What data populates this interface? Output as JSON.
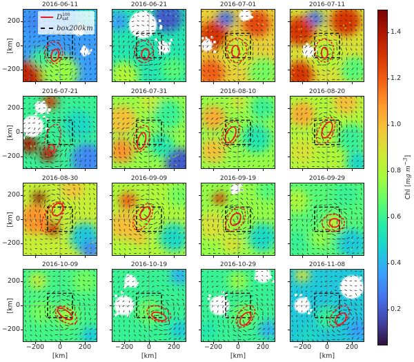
{
  "chart_data": {
    "type": "heatmap",
    "description_kind": "small multiples of chlorophyll maps with velocity arrows",
    "xlabel": "[km]",
    "ylabel": "[km]",
    "xlim": [
      -300,
      300
    ],
    "ylim": [
      -300,
      300
    ],
    "xticks": [
      -200,
      0,
      200
    ],
    "yticks": [
      200,
      0,
      -200
    ],
    "xtick_labels": [
      "−200",
      "0",
      "200"
    ],
    "ytick_labels": [
      "200",
      "0",
      "−200"
    ],
    "legend": {
      "placement": "top-left of first panel",
      "entries": [
        {
          "name": "D_sat^100",
          "main": "D",
          "sub": "sat",
          "sup": "100",
          "style": "solid",
          "color": "#e8181c"
        },
        {
          "name": "box_200km",
          "main": "box",
          "sub": "200km",
          "style": "dashed",
          "color": "#111111"
        }
      ]
    },
    "box_km": {
      "x": [
        -100,
        100
      ],
      "y": [
        -100,
        100
      ]
    },
    "colorbar": {
      "label_main": "Chl [",
      "label_units": "mg m",
      "label_exp": "−3",
      "label_end": "]",
      "range": [
        0.05,
        1.5
      ],
      "ticks": [
        0.2,
        0.4,
        0.6,
        0.8,
        1.0,
        1.2,
        1.4
      ],
      "tick_labels": [
        "0.2",
        "0.4",
        "0.6",
        "0.8",
        "1.0",
        "1.2",
        "1.4"
      ],
      "colormap": [
        "#30123b",
        "#4145ab",
        "#4675ed",
        "#39a2fc",
        "#1bcfd4",
        "#24eca6",
        "#61fc6c",
        "#a4fc3b",
        "#d1e834",
        "#f3c63a",
        "#fe9b2d",
        "#f36315",
        "#d93806",
        "#b11901",
        "#7a0403"
      ]
    },
    "contour_color": "#e8181c",
    "panels": [
      {
        "date": "2016-06-11",
        "base": 0.35,
        "blobs": [
          [
            -250,
            -250,
            130,
            1.35
          ],
          [
            0,
            -220,
            150,
            0.75
          ],
          [
            -150,
            -100,
            80,
            0.6
          ],
          [
            220,
            250,
            90,
            0.5
          ],
          [
            -200,
            200,
            90,
            0.3
          ],
          [
            150,
            120,
            50,
            null
          ],
          [
            200,
            -50,
            40,
            null
          ]
        ],
        "solid": [
          -40,
          -80,
          30,
          50,
          -10
        ],
        "dashed": [
          -50,
          -60,
          70,
          90,
          0
        ]
      },
      {
        "date": "2016-06-21",
        "base": 0.55,
        "blobs": [
          [
            150,
            230,
            120,
            0.2
          ],
          [
            -50,
            170,
            140,
            null
          ],
          [
            120,
            -20,
            60,
            null
          ],
          [
            -200,
            -250,
            120,
            0.8
          ],
          [
            200,
            -200,
            100,
            0.65
          ],
          [
            -250,
            200,
            80,
            0.35
          ]
        ],
        "solid": [
          -30,
          -70,
          30,
          45,
          -10
        ],
        "dashed": [
          -40,
          -50,
          75,
          90,
          0
        ]
      },
      {
        "date": "2016-07-01",
        "base": 0.95,
        "blobs": [
          [
            -100,
            220,
            70,
            0.25
          ],
          [
            -200,
            80,
            120,
            1.3
          ],
          [
            150,
            180,
            110,
            1.25
          ],
          [
            0,
            -50,
            110,
            0.85
          ],
          [
            200,
            -220,
            120,
            0.7
          ],
          [
            -220,
            -220,
            110,
            1.2
          ],
          [
            60,
            250,
            60,
            null
          ],
          [
            -250,
            0,
            60,
            null
          ]
        ],
        "solid": [
          -20,
          -50,
          30,
          50,
          0
        ],
        "dashed": [
          -10,
          -40,
          80,
          100,
          0
        ]
      },
      {
        "date": "2016-07-11",
        "base": 0.9,
        "blobs": [
          [
            -100,
            220,
            70,
            0.25
          ],
          [
            -220,
            120,
            120,
            1.3
          ],
          [
            150,
            200,
            120,
            1.3
          ],
          [
            0,
            -80,
            110,
            0.8
          ],
          [
            220,
            -200,
            110,
            0.65
          ],
          [
            -220,
            -240,
            110,
            1.3
          ],
          [
            -150,
            -50,
            60,
            null
          ]
        ],
        "solid": [
          -20,
          -60,
          25,
          45,
          0
        ],
        "dashed": [
          -20,
          -40,
          75,
          95,
          0
        ]
      },
      {
        "date": "2016-07-21",
        "base": 0.6,
        "blobs": [
          [
            -220,
            50,
            110,
            null
          ],
          [
            -250,
            -100,
            70,
            1.4
          ],
          [
            -100,
            -180,
            60,
            1.4
          ],
          [
            -80,
            250,
            60,
            1.3
          ],
          [
            220,
            -220,
            130,
            0.3
          ],
          [
            150,
            60,
            120,
            0.5
          ],
          [
            -150,
            200,
            60,
            null
          ]
        ],
        "solid": [
          -70,
          -130,
          25,
          30,
          0
        ],
        "dashed": [
          -60,
          -60,
          60,
          130,
          -15
        ]
      },
      {
        "date": "2016-07-31",
        "base": 0.75,
        "blobs": [
          [
            -220,
            100,
            120,
            1.0
          ],
          [
            -220,
            -150,
            100,
            1.1
          ],
          [
            250,
            -250,
            120,
            0.2
          ],
          [
            150,
            150,
            120,
            0.6
          ],
          [
            100,
            -100,
            100,
            0.55
          ],
          [
            0,
            250,
            80,
            0.85
          ]
        ],
        "solid": [
          -60,
          -70,
          30,
          70,
          -15
        ],
        "dashed": [
          -60,
          -50,
          60,
          110,
          -15
        ]
      },
      {
        "date": "2016-08-10",
        "base": 0.75,
        "blobs": [
          [
            -200,
            120,
            100,
            1.05
          ],
          [
            -200,
            -150,
            100,
            1.0
          ],
          [
            150,
            -50,
            120,
            0.55
          ],
          [
            200,
            200,
            100,
            0.6
          ],
          [
            0,
            250,
            60,
            0.9
          ]
        ],
        "solid": [
          -60,
          -20,
          35,
          70,
          -25
        ],
        "dashed": [
          -60,
          -10,
          60,
          110,
          -25
        ]
      },
      {
        "date": "2016-08-20",
        "base": 0.8,
        "blobs": [
          [
            -200,
            150,
            100,
            1.05
          ],
          [
            -200,
            -150,
            100,
            0.9
          ],
          [
            200,
            -50,
            120,
            0.6
          ],
          [
            150,
            250,
            100,
            1.0
          ],
          [
            250,
            -250,
            100,
            0.5
          ]
        ],
        "solid": [
          0,
          20,
          35,
          70,
          -25
        ],
        "dashed": [
          -10,
          10,
          60,
          120,
          -25
        ]
      },
      {
        "date": "2016-08-30",
        "base": 0.85,
        "blobs": [
          [
            -170,
            170,
            50,
            1.5
          ],
          [
            -200,
            0,
            120,
            1.1
          ],
          [
            -60,
            -80,
            50,
            1.4
          ],
          [
            200,
            -150,
            120,
            0.45
          ],
          [
            250,
            -250,
            80,
            0.3
          ],
          [
            100,
            250,
            80,
            1.0
          ]
        ],
        "solid": [
          -20,
          80,
          40,
          55,
          -30
        ],
        "dashed": [
          -60,
          20,
          65,
          140,
          -30
        ]
      },
      {
        "date": "2016-09-09",
        "base": 0.8,
        "blobs": [
          [
            -170,
            150,
            70,
            1.2
          ],
          [
            -200,
            -50,
            120,
            1.0
          ],
          [
            200,
            -150,
            120,
            0.5
          ],
          [
            250,
            200,
            100,
            0.7
          ],
          [
            -80,
            -150,
            60,
            1.0
          ]
        ],
        "solid": [
          -30,
          50,
          35,
          55,
          -30
        ],
        "dashed": [
          -50,
          20,
          60,
          120,
          -30
        ]
      },
      {
        "date": "2016-09-19",
        "base": 0.75,
        "blobs": [
          [
            -150,
            170,
            50,
            1.3
          ],
          [
            -200,
            -50,
            120,
            0.9
          ],
          [
            200,
            -150,
            120,
            0.5
          ],
          [
            250,
            250,
            100,
            0.65
          ],
          [
            -50,
            -200,
            80,
            0.9
          ],
          [
            -20,
            250,
            50,
            null
          ]
        ],
        "solid": [
          -20,
          0,
          35,
          55,
          -30
        ],
        "dashed": [
          -20,
          0,
          65,
          110,
          -30
        ]
      },
      {
        "date": "2016-09-29",
        "base": 0.65,
        "blobs": [
          [
            -250,
            150,
            100,
            0.8
          ],
          [
            -250,
            -200,
            100,
            0.6
          ],
          [
            200,
            -200,
            120,
            0.45
          ],
          [
            150,
            200,
            100,
            0.6
          ],
          [
            50,
            -30,
            70,
            0.85
          ],
          [
            -50,
            -150,
            80,
            0.75
          ]
        ],
        "solid": [
          60,
          -30,
          40,
          35,
          0
        ],
        "dashed": [
          50,
          -30,
          90,
          70,
          0
        ]
      },
      {
        "date": "2016-10-09",
        "base": 0.62,
        "blobs": [
          [
            -180,
            200,
            70,
            0.85
          ],
          [
            -150,
            -50,
            100,
            0.7
          ],
          [
            50,
            -80,
            90,
            0.75
          ],
          [
            250,
            -250,
            80,
            0.45
          ],
          [
            200,
            200,
            100,
            0.7
          ]
        ],
        "solid": [
          40,
          -70,
          70,
          30,
          -35
        ],
        "dashed": [
          50,
          -80,
          100,
          55,
          -35
        ]
      },
      {
        "date": "2016-10-19",
        "base": 0.6,
        "blobs": [
          [
            -200,
            0,
            100,
            null
          ],
          [
            -150,
            200,
            60,
            null
          ],
          [
            0,
            -50,
            100,
            0.7
          ],
          [
            250,
            250,
            80,
            0.4
          ],
          [
            250,
            -200,
            80,
            0.45
          ],
          [
            -100,
            -250,
            60,
            0.6
          ]
        ],
        "solid": [
          80,
          -90,
          60,
          30,
          -20
        ],
        "dashed": [
          80,
          -70,
          100,
          60,
          -20
        ]
      },
      {
        "date": "2016-10-29",
        "base": 0.6,
        "blobs": [
          [
            -150,
            0,
            100,
            null
          ],
          [
            200,
            250,
            80,
            null
          ],
          [
            -250,
            -200,
            80,
            0.55
          ],
          [
            50,
            -80,
            100,
            0.7
          ],
          [
            250,
            -200,
            80,
            0.4
          ],
          [
            0,
            200,
            80,
            0.75
          ]
        ],
        "solid": [
          60,
          -110,
          35,
          60,
          -35
        ],
        "dashed": [
          60,
          -90,
          60,
          100,
          -35
        ]
      },
      {
        "date": "2016-11-08",
        "base": 0.45,
        "blobs": [
          [
            200,
            150,
            120,
            null
          ],
          [
            -200,
            0,
            80,
            null
          ],
          [
            -200,
            250,
            60,
            0.9
          ],
          [
            0,
            -100,
            90,
            0.6
          ],
          [
            250,
            -200,
            80,
            0.35
          ],
          [
            -150,
            -250,
            80,
            0.5
          ]
        ],
        "solid": [
          110,
          -110,
          35,
          55,
          -40
        ],
        "dashed": [
          100,
          -90,
          60,
          100,
          -40
        ]
      }
    ]
  }
}
